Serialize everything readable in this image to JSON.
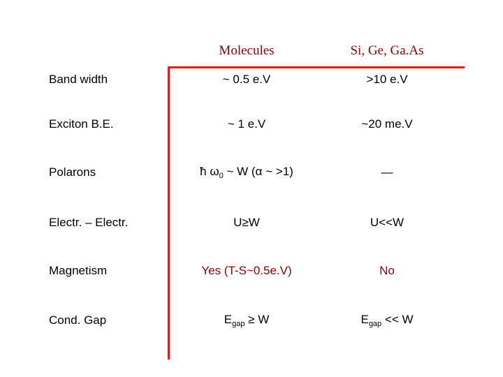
{
  "table": {
    "header": [
      "Molecules",
      "Si, Ge, Ga.As"
    ],
    "rows": [
      {
        "label": "Band width",
        "cells": [
          "~ 0.5 e.V",
          ">10 e.V"
        ]
      },
      {
        "label": "Exciton B.E.",
        "cells": [
          "~ 1 e.V",
          "~20 me.V"
        ]
      },
      {
        "label": "Polarons",
        "cells": [
          {
            "text": "ħ ω",
            "sub": "0",
            "after": " ~ W (α ~ >1)"
          },
          "—"
        ]
      },
      {
        "label": "Electr. – Electr.",
        "cells": [
          "U≥W",
          "U<<W"
        ]
      },
      {
        "label": "Magnetism",
        "cells": [
          "Yes (T-S~0.5e.V)",
          "No"
        ]
      },
      {
        "label": "Cond. Gap",
        "cells": [
          {
            "text": "E",
            "sub": "gap",
            "after": " ≥ W"
          },
          {
            "text": "E",
            "sub": "gap",
            "after": " << W"
          }
        ]
      }
    ]
  }
}
